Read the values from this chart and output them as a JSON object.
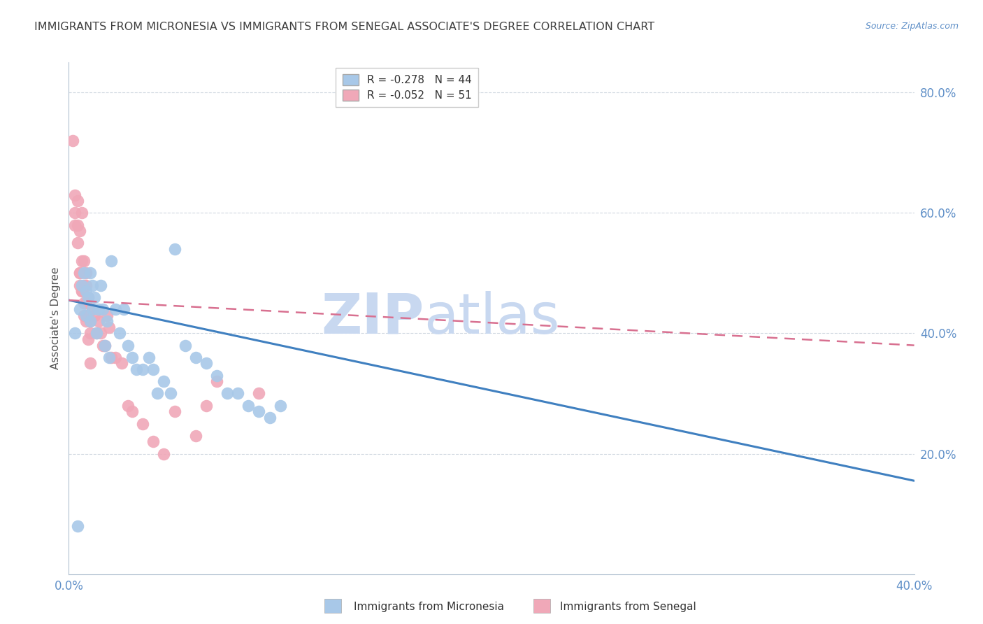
{
  "title": "IMMIGRANTS FROM MICRONESIA VS IMMIGRANTS FROM SENEGAL ASSOCIATE'S DEGREE CORRELATION CHART",
  "source": "Source: ZipAtlas.com",
  "ylabel": "Associate's Degree",
  "xlim": [
    0.0,
    0.4
  ],
  "ylim": [
    0.0,
    0.85
  ],
  "ytick_vals": [
    0.2,
    0.4,
    0.6,
    0.8
  ],
  "ytick_labels": [
    "20.0%",
    "40.0%",
    "60.0%",
    "80.0%"
  ],
  "xtick_vals": [
    0.0,
    0.1,
    0.2,
    0.3,
    0.4
  ],
  "xtick_labels": [
    "0.0%",
    "",
    "",
    "",
    "40.0%"
  ],
  "micronesia_x": [
    0.004,
    0.005,
    0.006,
    0.007,
    0.008,
    0.008,
    0.009,
    0.01,
    0.01,
    0.011,
    0.011,
    0.012,
    0.013,
    0.014,
    0.015,
    0.016,
    0.017,
    0.018,
    0.019,
    0.02,
    0.022,
    0.024,
    0.026,
    0.028,
    0.03,
    0.032,
    0.035,
    0.038,
    0.04,
    0.042,
    0.045,
    0.048,
    0.05,
    0.055,
    0.06,
    0.065,
    0.07,
    0.075,
    0.08,
    0.085,
    0.09,
    0.095,
    0.1,
    0.003
  ],
  "micronesia_y": [
    0.08,
    0.44,
    0.48,
    0.5,
    0.47,
    0.43,
    0.46,
    0.5,
    0.42,
    0.48,
    0.44,
    0.46,
    0.4,
    0.44,
    0.48,
    0.44,
    0.38,
    0.42,
    0.36,
    0.52,
    0.44,
    0.4,
    0.44,
    0.38,
    0.36,
    0.34,
    0.34,
    0.36,
    0.34,
    0.3,
    0.32,
    0.3,
    0.54,
    0.38,
    0.36,
    0.35,
    0.33,
    0.3,
    0.3,
    0.28,
    0.27,
    0.26,
    0.28,
    0.4
  ],
  "senegal_x": [
    0.002,
    0.003,
    0.003,
    0.004,
    0.004,
    0.005,
    0.005,
    0.005,
    0.006,
    0.006,
    0.006,
    0.007,
    0.007,
    0.007,
    0.008,
    0.008,
    0.008,
    0.009,
    0.009,
    0.01,
    0.01,
    0.011,
    0.012,
    0.013,
    0.014,
    0.015,
    0.016,
    0.017,
    0.018,
    0.019,
    0.02,
    0.022,
    0.025,
    0.028,
    0.03,
    0.035,
    0.04,
    0.045,
    0.05,
    0.06,
    0.065,
    0.07,
    0.003,
    0.004,
    0.005,
    0.006,
    0.007,
    0.008,
    0.009,
    0.01,
    0.09
  ],
  "senegal_y": [
    0.72,
    0.6,
    0.63,
    0.62,
    0.58,
    0.5,
    0.48,
    0.57,
    0.52,
    0.47,
    0.6,
    0.48,
    0.43,
    0.52,
    0.5,
    0.45,
    0.48,
    0.46,
    0.43,
    0.42,
    0.4,
    0.44,
    0.43,
    0.4,
    0.42,
    0.4,
    0.38,
    0.38,
    0.43,
    0.41,
    0.36,
    0.36,
    0.35,
    0.28,
    0.27,
    0.25,
    0.22,
    0.2,
    0.27,
    0.23,
    0.28,
    0.32,
    0.58,
    0.55,
    0.5,
    0.47,
    0.45,
    0.42,
    0.39,
    0.35,
    0.3
  ],
  "micronesia_color": "#a8c8e8",
  "senegal_color": "#f0a8b8",
  "micronesia_line_color": "#4080c0",
  "senegal_line_color": "#d87090",
  "micronesia_line_x0": 0.0,
  "micronesia_line_y0": 0.455,
  "micronesia_line_x1": 0.4,
  "micronesia_line_y1": 0.155,
  "senegal_line_x0": 0.0,
  "senegal_line_y0": 0.455,
  "senegal_line_x1": 0.4,
  "senegal_line_y1": 0.38,
  "R_micronesia": -0.278,
  "N_micronesia": 44,
  "R_senegal": -0.052,
  "N_senegal": 51,
  "watermark_zip": "ZIP",
  "watermark_atlas": "atlas",
  "watermark_color": "#c8d8f0",
  "background_color": "#ffffff",
  "grid_color": "#d0d8e0",
  "axis_color": "#b0c0d0",
  "tick_label_color": "#6090c8",
  "title_color": "#404040",
  "source_color": "#6090c8",
  "title_fontsize": 11.5,
  "legend_fontsize": 11,
  "ylabel_fontsize": 11,
  "source_fontsize": 9
}
